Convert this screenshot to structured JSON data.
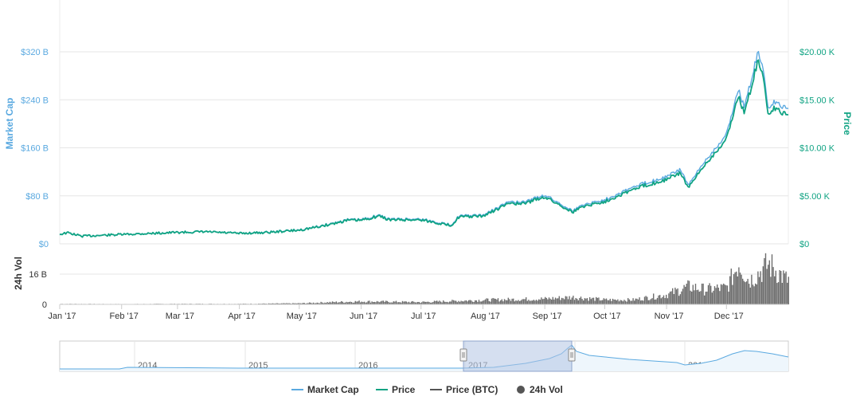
{
  "chart_data": {
    "type": "line",
    "x_axis": {
      "ticks": [
        "Jan '17",
        "Feb '17",
        "Mar '17",
        "Apr '17",
        "May '17",
        "Jun '17",
        "Jul '17",
        "Aug '17",
        "Sep '17",
        "Oct '17",
        "Nov '17",
        "Dec '17"
      ]
    },
    "y_left": {
      "label": "Market Cap",
      "ticks": [
        "$0",
        "$80 B",
        "$160 B",
        "$240 B",
        "$320 B"
      ],
      "ylim": [
        0,
        320
      ]
    },
    "y_right": {
      "label": "Price",
      "ticks": [
        "$0",
        "$5.00 K",
        "$10.00 K",
        "$15.00 K",
        "$20.00 K"
      ],
      "ylim": [
        0,
        20000
      ]
    },
    "volume_axis": {
      "label": "24h Vol",
      "ticks": [
        "0",
        "16 B"
      ]
    },
    "series": [
      {
        "name": "Price",
        "color": "#10a383",
        "x": [
          "2017-01-01",
          "2017-01-05",
          "2017-01-12",
          "2017-02-01",
          "2017-03-01",
          "2017-03-15",
          "2017-04-01",
          "2017-04-15",
          "2017-05-01",
          "2017-05-10",
          "2017-05-20",
          "2017-05-25",
          "2017-06-01",
          "2017-06-10",
          "2017-06-15",
          "2017-07-01",
          "2017-07-16",
          "2017-07-20",
          "2017-08-01",
          "2017-08-15",
          "2017-08-20",
          "2017-09-01",
          "2017-09-15",
          "2017-09-20",
          "2017-10-01",
          "2017-10-12",
          "2017-10-20",
          "2017-11-01",
          "2017-11-08",
          "2017-11-12",
          "2017-11-20",
          "2017-12-01",
          "2017-12-07",
          "2017-12-10",
          "2017-12-17",
          "2017-12-20",
          "2017-12-22",
          "2017-12-25",
          "2017-12-31"
        ],
        "values": [
          1000,
          1150,
          800,
          970,
          1190,
          1250,
          1080,
          1190,
          1420,
          1750,
          2200,
          2450,
          2450,
          2900,
          2500,
          2500,
          1900,
          2800,
          2880,
          4300,
          4100,
          4900,
          3300,
          3900,
          4400,
          5400,
          6000,
          6700,
          7400,
          5800,
          8200,
          10900,
          15500,
          13500,
          19300,
          16500,
          13500,
          14100,
          13400
        ]
      },
      {
        "name": "Market Cap",
        "color": "#5aa9e0",
        "x": [
          "2017-01-01",
          "2017-01-05",
          "2017-01-12",
          "2017-02-01",
          "2017-03-01",
          "2017-03-15",
          "2017-04-01",
          "2017-04-15",
          "2017-05-01",
          "2017-05-10",
          "2017-05-20",
          "2017-05-25",
          "2017-06-01",
          "2017-06-10",
          "2017-06-15",
          "2017-07-01",
          "2017-07-16",
          "2017-07-20",
          "2017-08-01",
          "2017-08-15",
          "2017-08-20",
          "2017-09-01",
          "2017-09-15",
          "2017-09-20",
          "2017-10-01",
          "2017-10-12",
          "2017-10-20",
          "2017-11-01",
          "2017-11-08",
          "2017-11-12",
          "2017-11-20",
          "2017-12-01",
          "2017-12-07",
          "2017-12-10",
          "2017-12-17",
          "2017-12-20",
          "2017-12-22",
          "2017-12-25",
          "2017-12-31"
        ],
        "values": [
          16,
          18.5,
          13,
          15.7,
          19.3,
          20.3,
          17.6,
          19.5,
          23.3,
          28.7,
          36,
          40.2,
          40.3,
          47.8,
          41.3,
          41.3,
          31.5,
          46.4,
          47.6,
          71.5,
          68,
          81.5,
          55,
          65,
          73.5,
          90,
          100,
          112,
          124,
          97,
          137,
          182,
          259,
          226,
          323,
          276,
          226,
          236,
          225
        ]
      }
    ],
    "volume": {
      "name": "24h Vol",
      "color": "#6e6e6e",
      "x": [
        "2017-01-01",
        "2017-02-01",
        "2017-03-01",
        "2017-04-01",
        "2017-05-01",
        "2017-05-15",
        "2017-06-01",
        "2017-07-01",
        "2017-08-01",
        "2017-09-01",
        "2017-09-15",
        "2017-10-01",
        "2017-10-15",
        "2017-11-01",
        "2017-11-12",
        "2017-11-20",
        "2017-12-01",
        "2017-12-07",
        "2017-12-12",
        "2017-12-17",
        "2017-12-22",
        "2017-12-31"
      ],
      "values": [
        0.3,
        0.2,
        0.3,
        0.3,
        0.6,
        1.2,
        1.7,
        1.3,
        2.5,
        3.2,
        4.1,
        2.6,
        2.6,
        5.6,
        10.2,
        8.5,
        9.5,
        24,
        13.5,
        18,
        23,
        14
      ]
    },
    "navigator": {
      "years": [
        "2014",
        "2015",
        "2016",
        "2017",
        "2018",
        "2019"
      ]
    },
    "legend": {
      "placement": "bottom-center",
      "items": [
        {
          "label": "Market Cap",
          "color": "#5aa9e0",
          "marker": "line"
        },
        {
          "label": "Price",
          "color": "#10a383",
          "marker": "line"
        },
        {
          "label": "Price (BTC)",
          "color": "#555555",
          "marker": "line"
        },
        {
          "label": "24h Vol",
          "color": "#555555",
          "marker": "circle"
        }
      ]
    },
    "grid": true
  }
}
